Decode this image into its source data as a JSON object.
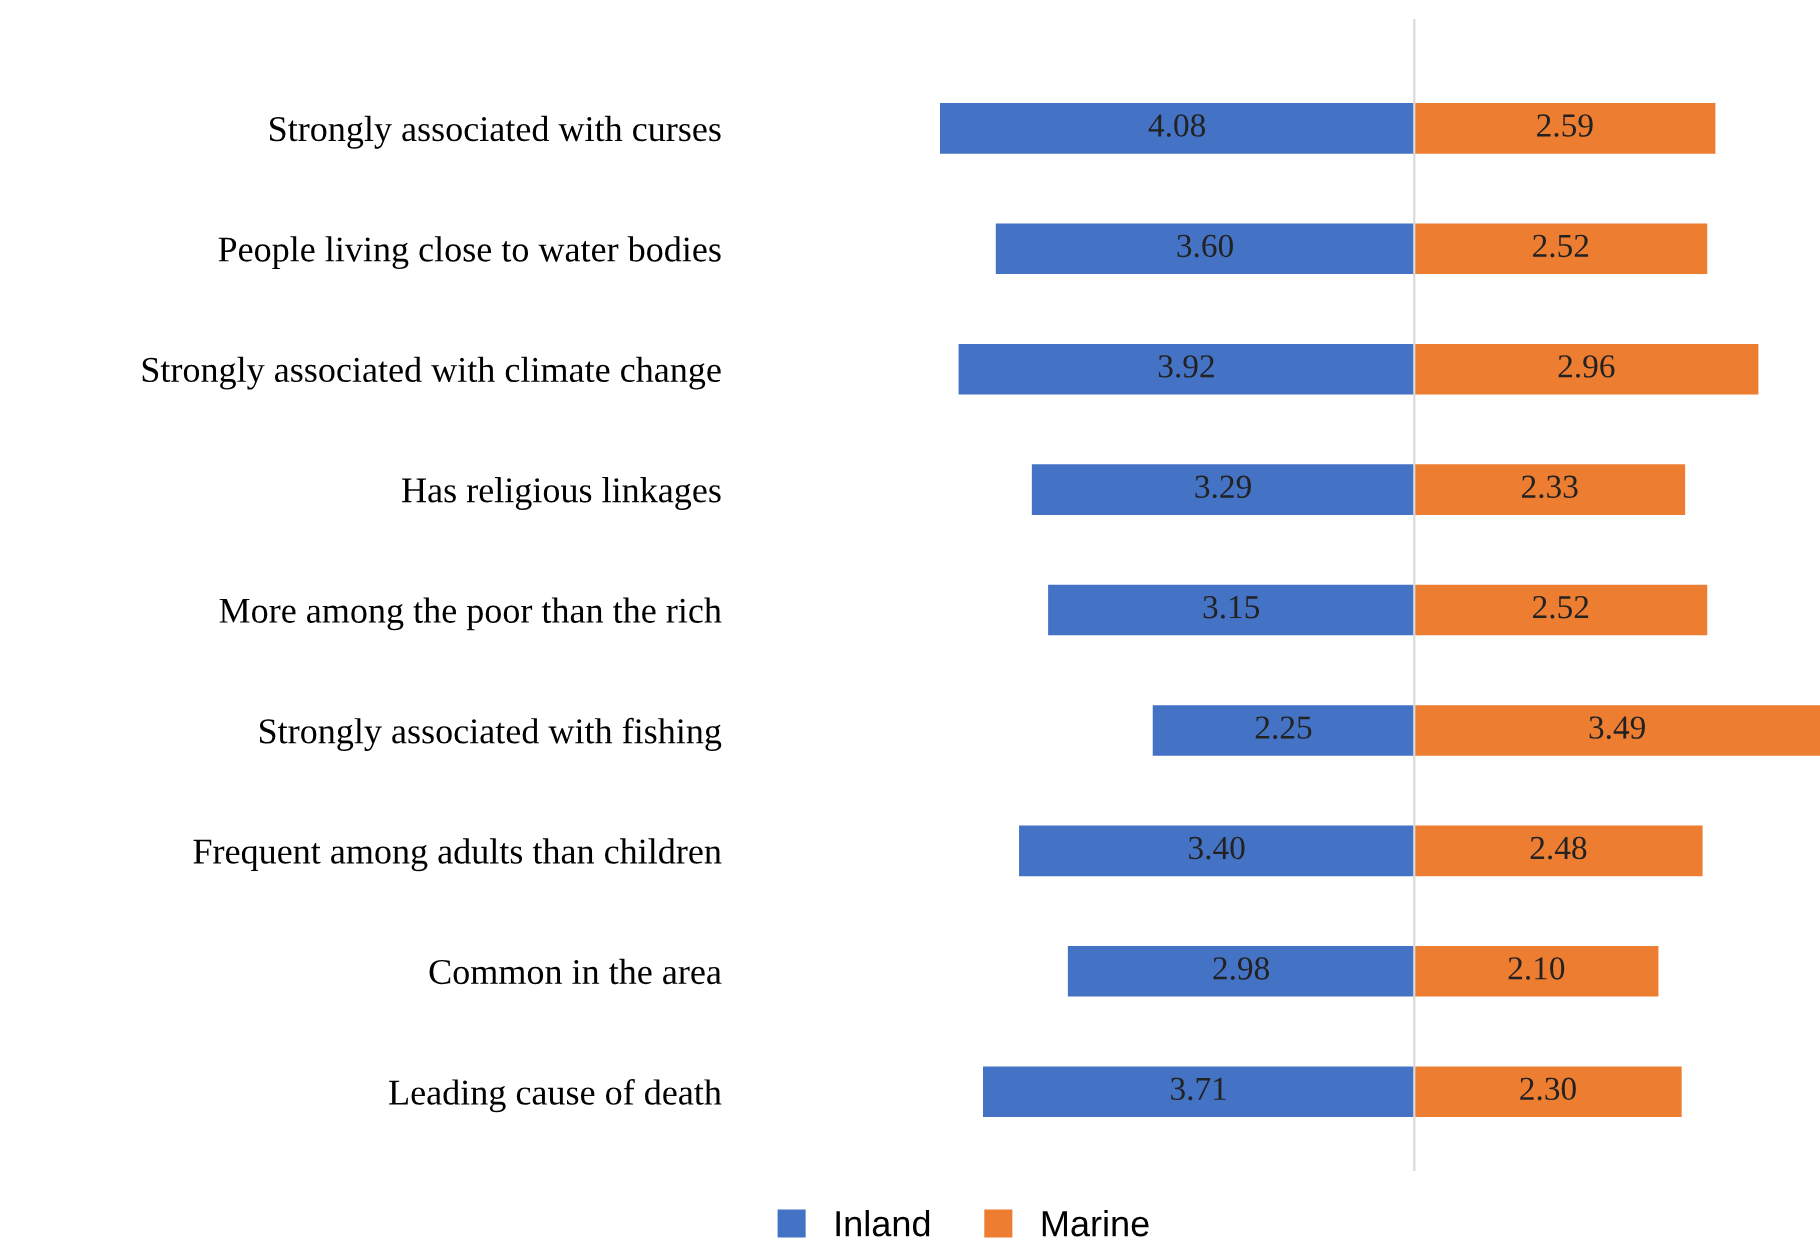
{
  "chart_data": [
    {
      "type": "bar",
      "orientation": "horizontal",
      "xlim": [
        4.08,
        0
      ],
      "categories": [
        "Strongly associated with curses",
        "People living close to water bodies",
        "Strongly associated with climate change",
        "Has religious linkages",
        "More among the poor than the rich",
        "Strongly associated with fishing",
        "Frequent among adults than children",
        "Common in the area",
        "Leading cause of death"
      ],
      "series": [
        {
          "name": "Inland",
          "color": "#4472c4",
          "values": [
            4.08,
            3.6,
            3.92,
            3.29,
            3.15,
            2.25,
            3.4,
            2.98,
            3.71
          ],
          "value_labels": [
            "4.08",
            "3.60",
            "3.92",
            "3.29",
            "3.15",
            "2.25",
            "3.40",
            "2.98",
            "3.71"
          ]
        }
      ],
      "tick_labels": "y",
      "legend": "bottom"
    },
    {
      "type": "bar",
      "orientation": "horizontal",
      "xlim": [
        0,
        3.49
      ],
      "categories": [
        null,
        null,
        null,
        null,
        null,
        null,
        null,
        null,
        null
      ],
      "series": [
        {
          "name": "Marine",
          "color": "#ed7d31",
          "values": [
            2.59,
            2.52,
            2.96,
            2.33,
            2.52,
            3.49,
            2.48,
            2.1,
            2.3
          ],
          "value_labels": [
            "2.59",
            "2.52",
            "2.96",
            "2.33",
            "2.52",
            "3.49",
            "2.48",
            "2.10",
            "2.30"
          ]
        }
      ],
      "tick_labels": false,
      "legend": "bottom"
    }
  ]
}
